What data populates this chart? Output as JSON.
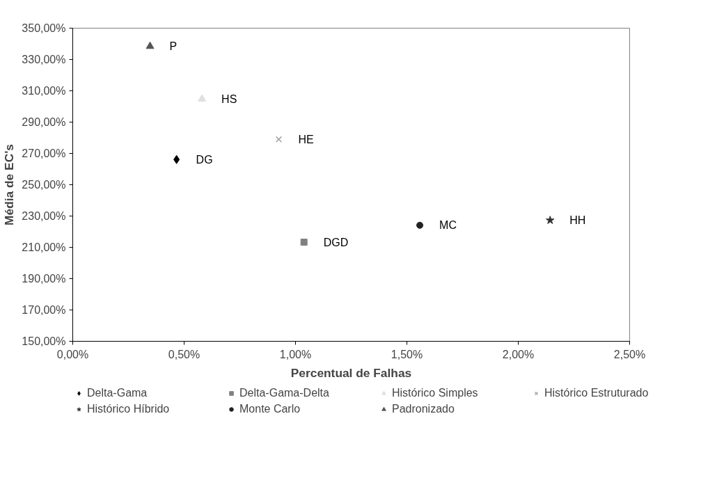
{
  "chart_data": {
    "type": "scatter",
    "xlabel": "Percentual de Falhas",
    "ylabel": "Média de EC's",
    "xlim": [
      0,
      2.5
    ],
    "ylim": [
      150,
      350
    ],
    "xticks": [
      {
        "value": 0,
        "label": "0,00%"
      },
      {
        "value": 0.5,
        "label": "0,50%"
      },
      {
        "value": 1,
        "label": "1,00%"
      },
      {
        "value": 1.5,
        "label": "1,50%"
      },
      {
        "value": 2,
        "label": "2,00%"
      },
      {
        "value": 2.5,
        "label": "2,50%"
      }
    ],
    "yticks": [
      {
        "value": 150,
        "label": "150,00%"
      },
      {
        "value": 170,
        "label": "170,00%"
      },
      {
        "value": 190,
        "label": "190,00%"
      },
      {
        "value": 210,
        "label": "210,00%"
      },
      {
        "value": 230,
        "label": "230,00%"
      },
      {
        "value": 250,
        "label": "250,00%"
      },
      {
        "value": 270,
        "label": "270,00%"
      },
      {
        "value": 290,
        "label": "290,00%"
      },
      {
        "value": 310,
        "label": "310,00%"
      },
      {
        "value": 330,
        "label": "330,00%"
      },
      {
        "value": 350,
        "label": "350,00%"
      }
    ],
    "grid": false,
    "legend": "bottom",
    "series": [
      {
        "name": "Delta-Gama",
        "color": "#000000",
        "marker": "diamond",
        "x": [
          0.466
        ],
        "values": [
          266.1
        ]
      },
      {
        "name": "Delta-Gama-Delta",
        "color": "#808080",
        "marker": "square",
        "x": [
          1.038
        ],
        "values": [
          213.3
        ]
      },
      {
        "name": "Histórico Simples",
        "color": "#e0e0e0",
        "marker": "triangle",
        "x": [
          0.58
        ],
        "values": [
          304.8
        ]
      },
      {
        "name": "Histórico Estruturado",
        "color": "#a6a6a6",
        "marker": "cross",
        "x": [
          0.925
        ],
        "values": [
          279.0
        ]
      },
      {
        "name": "Histórico Híbrido",
        "color": "#333333",
        "marker": "star",
        "x": [
          2.143
        ],
        "values": [
          227.3
        ]
      },
      {
        "name": "Monte Carlo",
        "color": "#222222",
        "marker": "circle",
        "x": [
          1.558
        ],
        "values": [
          224.1
        ]
      },
      {
        "name": "Padronizado",
        "color": "#555555",
        "marker": "triangle",
        "x": [
          0.347
        ],
        "values": [
          338.4
        ]
      }
    ],
    "annotations": [
      {
        "text": "DG",
        "x": 0.466,
        "y": 266.1
      },
      {
        "text": "DGD",
        "x": 1.038,
        "y": 213.3
      },
      {
        "text": "HS",
        "x": 0.58,
        "y": 304.8
      },
      {
        "text": "HE",
        "x": 0.925,
        "y": 279.0
      },
      {
        "text": "HH",
        "x": 2.143,
        "y": 227.3
      },
      {
        "text": "MC",
        "x": 1.558,
        "y": 224.1
      },
      {
        "text": "P",
        "x": 0.347,
        "y": 338.4
      }
    ]
  }
}
